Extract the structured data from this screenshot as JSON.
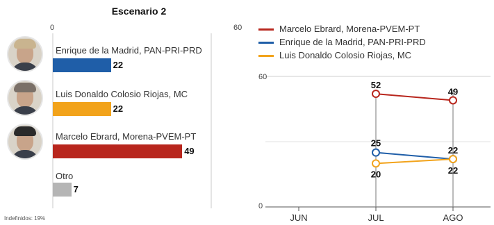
{
  "chart_data": [
    {
      "type": "bar",
      "orientation": "horizontal",
      "title": "Escenario 2",
      "xlim": [
        0,
        60
      ],
      "ticks": [
        "0",
        "60"
      ],
      "categories": [
        "Enrique de la Madrid, PAN-PRI-PRD",
        "Luis Donaldo Colosio Riojas, MC",
        "Marcelo Ebrard, Morena-PVEM-PT",
        "Otro"
      ],
      "values": [
        22,
        22,
        49,
        7
      ],
      "colors": [
        "#1f5ea8",
        "#f2a31b",
        "#b8261d",
        "#b5b5b5"
      ],
      "footnote": "Indefinidos: 19%"
    },
    {
      "type": "line",
      "x": [
        "JUN",
        "JUL",
        "AGO"
      ],
      "ylim": [
        0,
        60
      ],
      "yticks": [
        "0",
        "60"
      ],
      "grid": true,
      "legend_position": "top",
      "series": [
        {
          "name": "Marcelo Ebrard, Morena-PVEM-PT",
          "color": "#b8261d",
          "values": [
            null,
            52,
            49
          ]
        },
        {
          "name": "Enrique de la Madrid, PAN-PRI-PRD",
          "color": "#1f5ea8",
          "values": [
            null,
            25,
            22
          ]
        },
        {
          "name": "Luis Donaldo Colosio Riojas, MC",
          "color": "#f2a31b",
          "values": [
            null,
            20,
            22
          ]
        }
      ]
    }
  ]
}
